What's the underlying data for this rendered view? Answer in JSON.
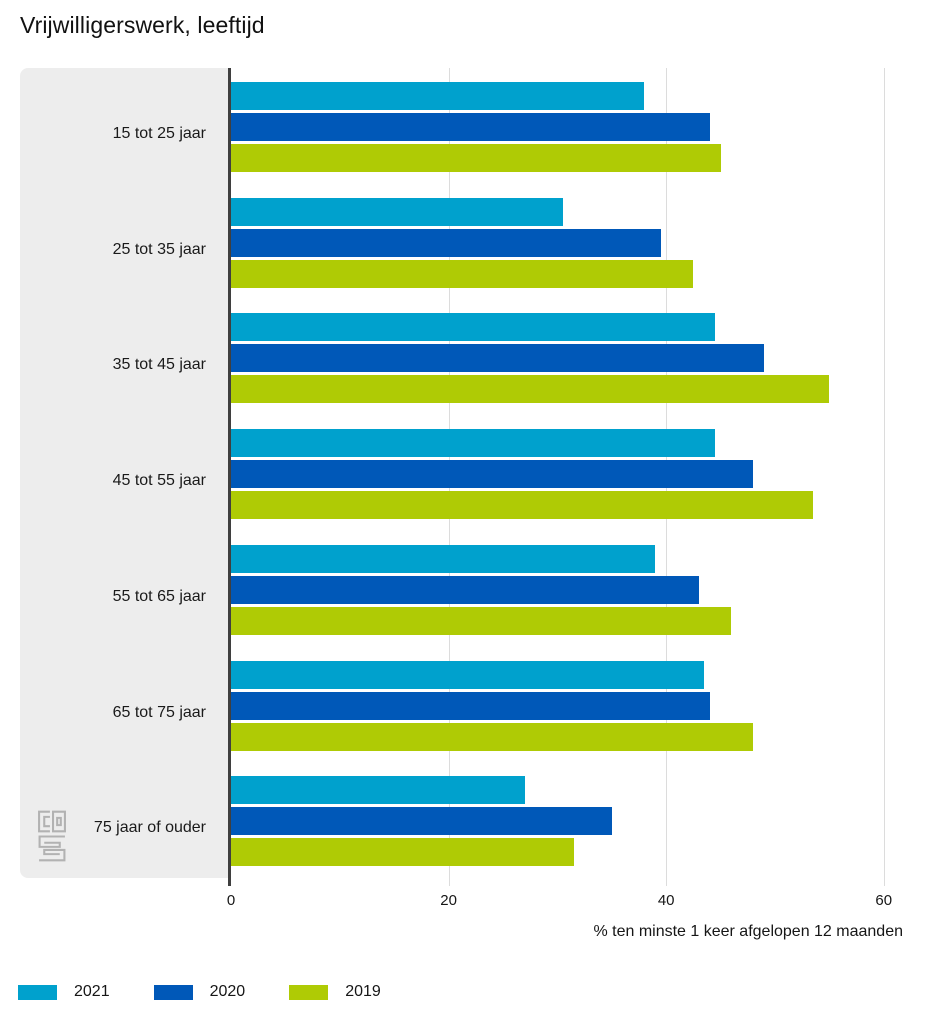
{
  "title": "Vrijwilligerswerk, leeftijd",
  "chart_data": {
    "type": "bar",
    "orientation": "horizontal",
    "title": "Vrijwilligerswerk, leeftijd",
    "categories": [
      "15 tot 25 jaar",
      "25 tot 35 jaar",
      "35 tot 45 jaar",
      "45 tot 55 jaar",
      "55 tot 65 jaar",
      "65 tot 75 jaar",
      "75 jaar of ouder"
    ],
    "series": [
      {
        "name": "2021",
        "color": "#00a1cd",
        "values": [
          38,
          30.5,
          44.5,
          44.5,
          39,
          43.5,
          27
        ]
      },
      {
        "name": "2020",
        "color": "#0058b8",
        "values": [
          44,
          39.5,
          49,
          48,
          43,
          44,
          35
        ]
      },
      {
        "name": "2019",
        "color": "#afcb05",
        "values": [
          45,
          42.5,
          55,
          53.5,
          46,
          48,
          31.5
        ]
      }
    ],
    "xlabel": "% ten minste 1 keer afgelopen 12 maanden",
    "xticks": [
      "0",
      "20",
      "40",
      "60"
    ],
    "xtick_values": [
      0,
      20,
      40,
      60
    ],
    "xlim": [
      0,
      64.25
    ],
    "grid": "vertical-only",
    "legend_position": "bottom-left",
    "colors": {
      "label_panel": "#ededed",
      "gridline": "#dcdcdc",
      "zero_line": "#3f3f3f",
      "logo_gray": "#b2b2b2"
    }
  },
  "branding": {
    "logo_name": "cbs-logo"
  }
}
